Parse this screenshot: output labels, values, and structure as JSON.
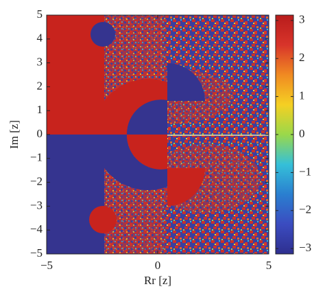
{
  "chart_data": {
    "type": "heatmap",
    "xlabel": "Rr [z]",
    "ylabel": "Im [z]",
    "xlim": [
      -5,
      5
    ],
    "ylim": [
      -5,
      5
    ],
    "xticks": [
      {
        "value": -5,
        "label": "−5"
      },
      0,
      5
    ],
    "yticks": [
      {
        "value": -5,
        "label": "−5"
      },
      {
        "value": -4,
        "label": "−4"
      },
      {
        "value": -3,
        "label": "−3"
      },
      {
        "value": -2,
        "label": "−2"
      },
      {
        "value": -1,
        "label": "−1"
      },
      0,
      1,
      2,
      3,
      4,
      5
    ],
    "colorbar": {
      "lim": [
        -3.1416,
        3.1416
      ],
      "ticks": [
        {
          "value": -3,
          "label": "−3"
        },
        {
          "value": -2,
          "label": "−2"
        },
        {
          "value": -1,
          "label": "−1"
        },
        0,
        1,
        2,
        3
      ],
      "colormap": [
        "#2e2f8f",
        "#3b4cc0",
        "#2a7fd0",
        "#35c0d8",
        "#9ad84a",
        "#f5d023",
        "#f08a22",
        "#d8342a",
        "#b81c1c"
      ]
    }
  }
}
